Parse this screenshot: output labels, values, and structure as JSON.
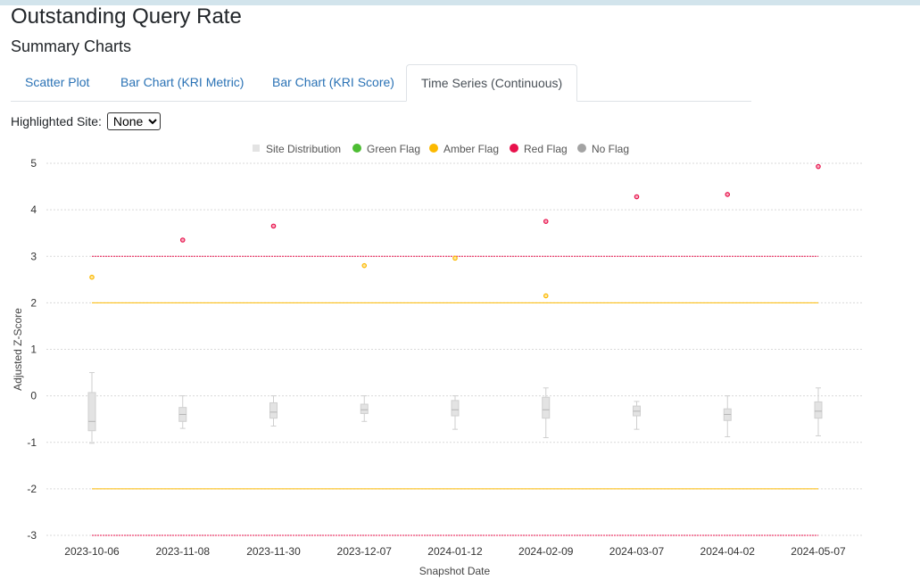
{
  "header": {
    "title": "Outstanding Query Rate",
    "subtitle": "Summary Charts"
  },
  "tabs": [
    {
      "label": "Scatter Plot",
      "active": false
    },
    {
      "label": "Bar Chart (KRI Metric)",
      "active": false
    },
    {
      "label": "Bar Chart (KRI Score)",
      "active": false
    },
    {
      "label": "Time Series (Continuous)",
      "active": true
    }
  ],
  "site_selector": {
    "label": "Highlighted Site:",
    "selected": "None"
  },
  "colors": {
    "green": "#4dbd33",
    "amber": "#fcb900",
    "red": "#e8114b",
    "no_flag": "#a3a3a3",
    "box_fill": "#e3e3e3",
    "box_stroke": "#cfcfcf",
    "link": "#2a72b5"
  },
  "chart_data": {
    "type": "box",
    "xlabel": "Snapshot Date",
    "ylabel": "Adjusted Z-Score",
    "ylim": [
      -3,
      5
    ],
    "yticks": [
      -3,
      -2,
      -1,
      0,
      1,
      2,
      3,
      4,
      5
    ],
    "grid": true,
    "legend": {
      "position": "top",
      "items": [
        {
          "label": "Site Distribution",
          "color": "#e3e3e3",
          "shape": "square"
        },
        {
          "label": "Green Flag",
          "color": "#4dbd33",
          "shape": "circle"
        },
        {
          "label": "Amber Flag",
          "color": "#fcb900",
          "shape": "circle"
        },
        {
          "label": "Red Flag",
          "color": "#e8114b",
          "shape": "circle"
        },
        {
          "label": "No Flag",
          "color": "#a3a3a3",
          "shape": "circle"
        }
      ]
    },
    "categories": [
      "2023-10-06",
      "2023-11-08",
      "2023-11-30",
      "2023-12-07",
      "2024-01-12",
      "2024-02-09",
      "2024-03-07",
      "2024-04-02",
      "2024-05-07"
    ],
    "boxes": [
      {
        "min": -1.02,
        "q1": -0.75,
        "median": -0.55,
        "q3": 0.07,
        "max": 0.5
      },
      {
        "min": -0.7,
        "q1": -0.55,
        "median": -0.4,
        "q3": -0.25,
        "max": 0.0
      },
      {
        "min": -0.65,
        "q1": -0.48,
        "median": -0.35,
        "q3": -0.15,
        "max": 0.0
      },
      {
        "min": -0.55,
        "q1": -0.38,
        "median": -0.3,
        "q3": -0.18,
        "max": 0.0
      },
      {
        "min": -0.72,
        "q1": -0.43,
        "median": -0.3,
        "q3": -0.1,
        "max": 0.0
      },
      {
        "min": -0.9,
        "q1": -0.48,
        "median": -0.3,
        "q3": -0.03,
        "max": 0.17
      },
      {
        "min": -0.72,
        "q1": -0.43,
        "median": -0.33,
        "q3": -0.22,
        "max": -0.12
      },
      {
        "min": -0.88,
        "q1": -0.53,
        "median": -0.4,
        "q3": -0.28,
        "max": 0.0
      },
      {
        "min": -0.86,
        "q1": -0.48,
        "median": -0.33,
        "q3": -0.13,
        "max": 0.17
      }
    ],
    "points": [
      {
        "x": "2023-10-06",
        "y": 2.55,
        "flag": "amber"
      },
      {
        "x": "2023-11-08",
        "y": 3.35,
        "flag": "red"
      },
      {
        "x": "2023-11-30",
        "y": 3.65,
        "flag": "red"
      },
      {
        "x": "2023-12-07",
        "y": 2.8,
        "flag": "amber"
      },
      {
        "x": "2024-01-12",
        "y": 2.96,
        "flag": "amber"
      },
      {
        "x": "2024-02-09",
        "y": 3.75,
        "flag": "red"
      },
      {
        "x": "2024-02-09",
        "y": 2.15,
        "flag": "amber"
      },
      {
        "x": "2024-03-07",
        "y": 4.28,
        "flag": "red"
      },
      {
        "x": "2024-04-02",
        "y": 4.33,
        "flag": "red"
      },
      {
        "x": "2024-05-07",
        "y": 4.93,
        "flag": "red"
      }
    ],
    "thresholds": [
      {
        "y": 3,
        "flag": "red"
      },
      {
        "y": 2,
        "flag": "amber"
      },
      {
        "y": -2,
        "flag": "amber"
      },
      {
        "y": -3,
        "flag": "red"
      }
    ]
  }
}
